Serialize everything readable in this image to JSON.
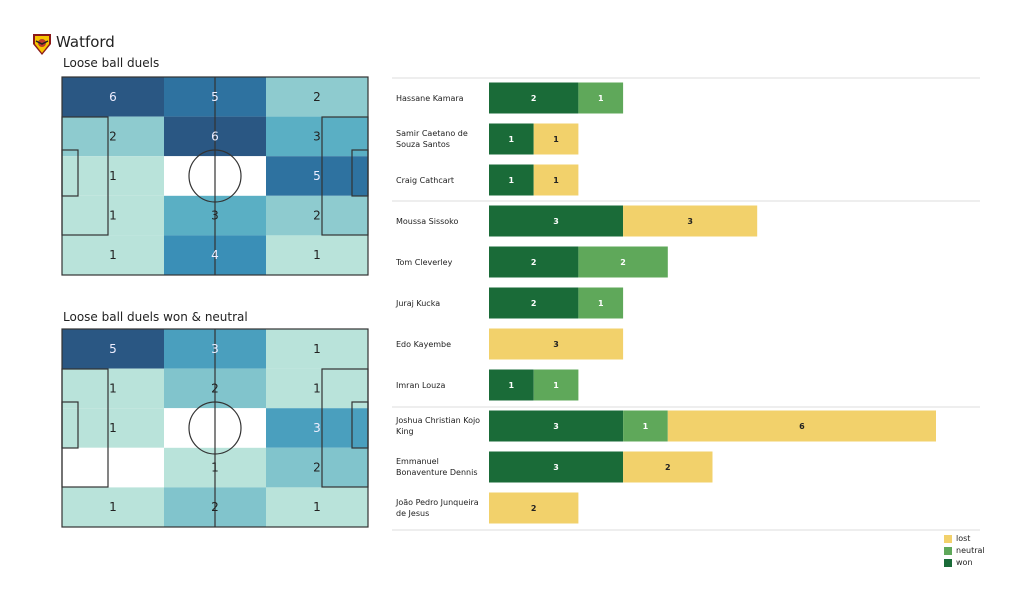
{
  "team": "Watford",
  "colors": {
    "won": "#1a6b38",
    "neutral": "#5fa85a",
    "lost": "#f2d16b"
  },
  "chart_data": [
    {
      "type": "heatmap",
      "title": "Loose ball duels",
      "rows": 5,
      "cols": 3,
      "values": [
        [
          6,
          5,
          2
        ],
        [
          2,
          6,
          3
        ],
        [
          1,
          0,
          5
        ],
        [
          1,
          3,
          2
        ],
        [
          1,
          4,
          1
        ]
      ]
    },
    {
      "type": "heatmap",
      "title": "Loose ball duels won & neutral",
      "rows": 5,
      "cols": 3,
      "values": [
        [
          5,
          3,
          1
        ],
        [
          1,
          2,
          1
        ],
        [
          1,
          0,
          3
        ],
        [
          0,
          1,
          2
        ],
        [
          1,
          2,
          1
        ]
      ]
    },
    {
      "type": "bar",
      "stacked": true,
      "orientation": "horizontal",
      "legend": [
        "lost",
        "neutral",
        "won"
      ],
      "legend_position": "bottom-right",
      "categories": [
        "Hassane Kamara",
        "Samir Caetano de Souza Santos",
        "Craig Cathcart",
        "Moussa Sissoko",
        "Tom Cleverley",
        "Juraj Kucka",
        "Edo Kayembe",
        "Imran Louza",
        "Joshua Christian Kojo King",
        "Emmanuel Bonaventure Dennis",
        "João Pedro Junqueira de Jesus"
      ],
      "series": [
        {
          "name": "won",
          "values": [
            2,
            1,
            1,
            3,
            2,
            2,
            0,
            1,
            3,
            3,
            0
          ]
        },
        {
          "name": "neutral",
          "values": [
            1,
            0,
            0,
            0,
            2,
            1,
            0,
            1,
            1,
            0,
            0
          ]
        },
        {
          "name": "lost",
          "values": [
            0,
            1,
            1,
            3,
            0,
            0,
            3,
            0,
            6,
            2,
            2
          ]
        }
      ],
      "groups": [
        [
          0,
          1,
          2
        ],
        [
          3,
          4,
          5,
          6,
          7
        ],
        [
          8,
          9,
          10
        ]
      ]
    }
  ]
}
